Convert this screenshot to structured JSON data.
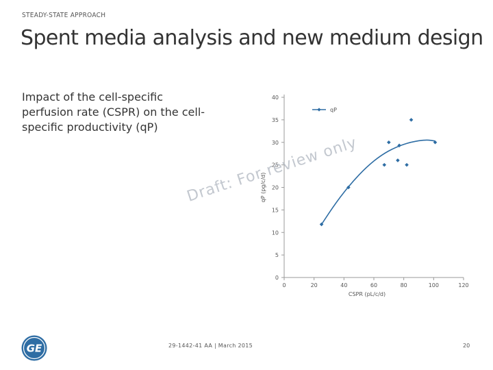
{
  "slide": {
    "eyebrow": "STEADY-STATE APPROACH",
    "title": "Spent media analysis and new medium design",
    "body_lines": [
      "Impact of the cell-specific",
      "perfusion rate (CSPR) on the cell-",
      "specific productivity (qP)"
    ],
    "watermark": "Draft: For review only",
    "footer_ref": "29-1442-41 AA | March 2015",
    "page_number": "20",
    "logo_text": "GE",
    "colors": {
      "series": "#2e6da4",
      "text": "#333333",
      "logo": "#2e6da4"
    }
  },
  "chart_data": {
    "type": "scatter",
    "xlabel": "CSPR (pL/c/d)",
    "ylabel": "qP (pg/c/d)",
    "xlim": [
      0,
      120
    ],
    "ylim": [
      0,
      40
    ],
    "x_ticks": [
      "0",
      "20",
      "40",
      "60",
      "80",
      "100",
      "120"
    ],
    "y_ticks": [
      "0",
      "5",
      "10",
      "15",
      "20",
      "25",
      "30",
      "35",
      "40"
    ],
    "legend": {
      "position": "top-left",
      "label": "qP"
    },
    "grid": false,
    "series": [
      {
        "name": "qP",
        "points": [
          {
            "x": 25,
            "y": 11.8
          },
          {
            "x": 43,
            "y": 20
          },
          {
            "x": 67,
            "y": 25
          },
          {
            "x": 70,
            "y": 30
          },
          {
            "x": 76,
            "y": 26
          },
          {
            "x": 77,
            "y": 29.3
          },
          {
            "x": 82,
            "y": 25
          },
          {
            "x": 85,
            "y": 35
          },
          {
            "x": 101,
            "y": 30
          }
        ],
        "trendline": [
          {
            "x": 25,
            "y": 11.8
          },
          {
            "x": 35,
            "y": 16.8
          },
          {
            "x": 45,
            "y": 21
          },
          {
            "x": 55,
            "y": 24.5
          },
          {
            "x": 65,
            "y": 27.2
          },
          {
            "x": 75,
            "y": 29
          },
          {
            "x": 85,
            "y": 30.1
          },
          {
            "x": 95,
            "y": 30.6
          },
          {
            "x": 101,
            "y": 30.3
          }
        ]
      }
    ]
  }
}
